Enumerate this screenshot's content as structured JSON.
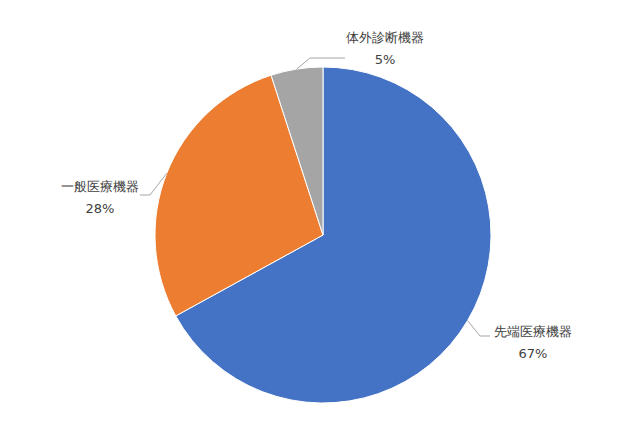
{
  "chart_data": {
    "type": "pie",
    "categories": [
      "先端医療機器",
      "一般医療機器",
      "体外診断機器"
    ],
    "values": [
      67,
      28,
      5
    ],
    "value_labels": [
      "67%",
      "28%",
      "5%"
    ],
    "colors": [
      "#4472c4",
      "#ed7d31",
      "#a5a5a5"
    ],
    "data_labels": true
  }
}
